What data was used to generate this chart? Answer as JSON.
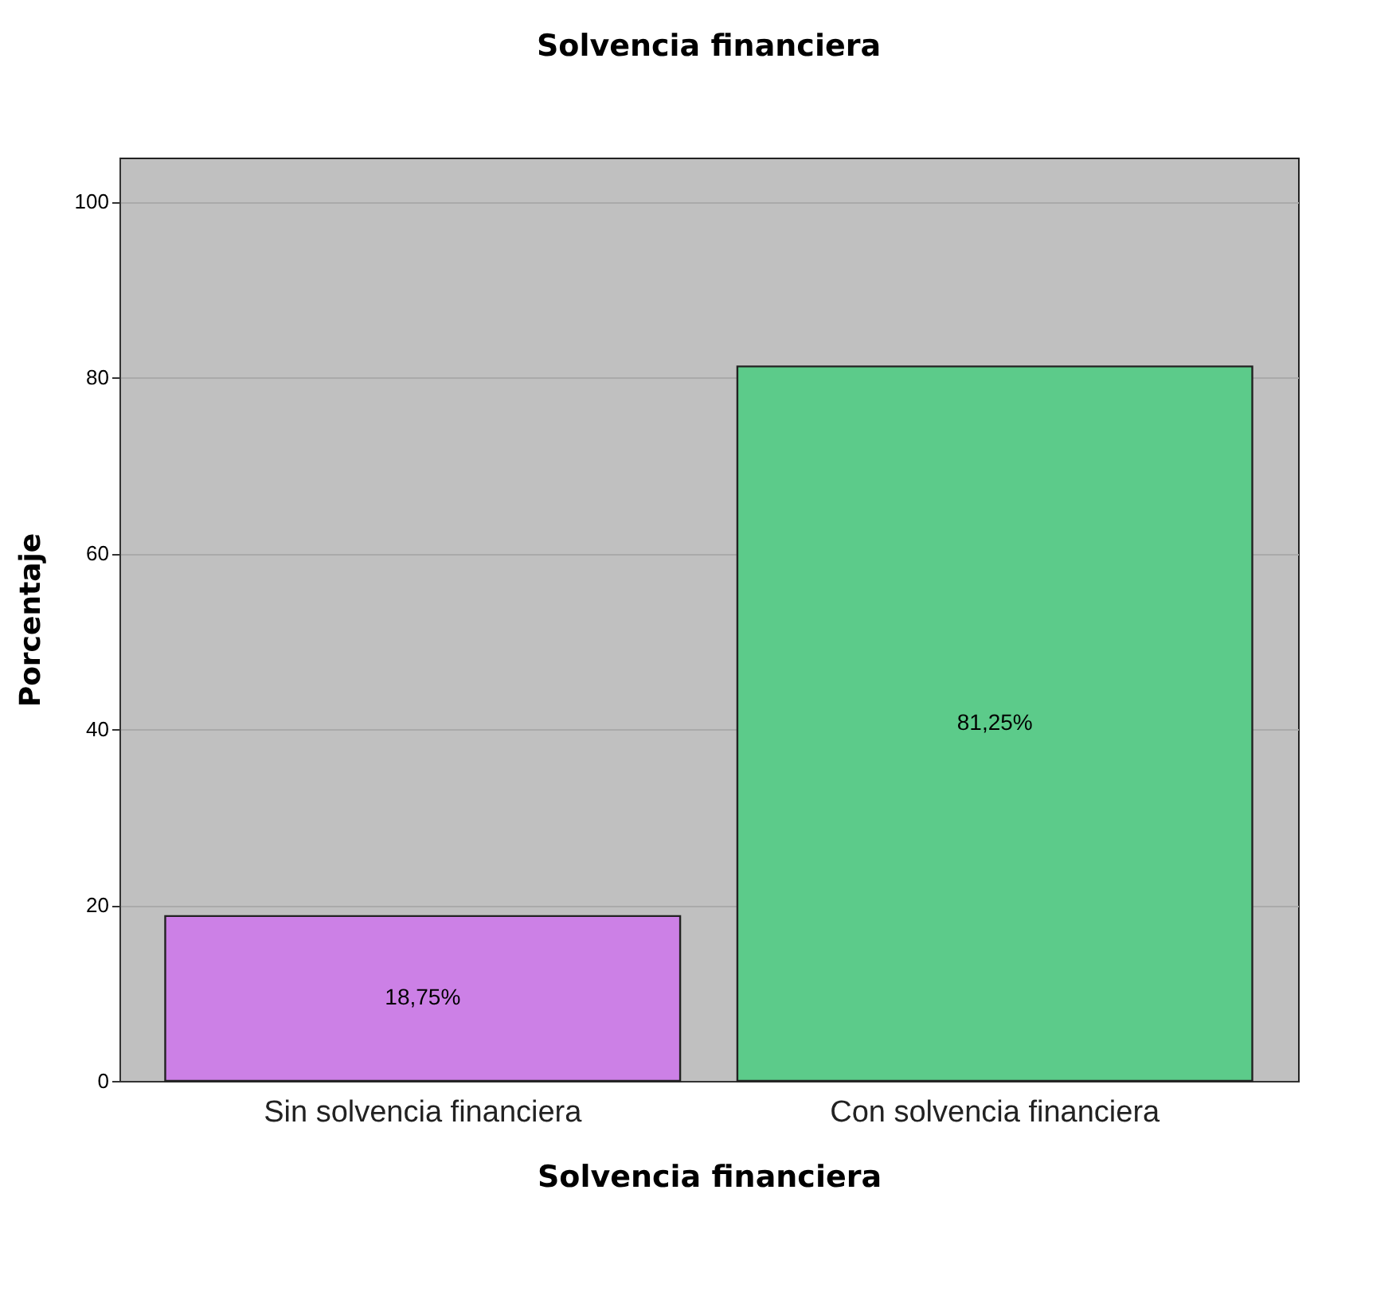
{
  "chart_data": {
    "type": "bar",
    "title": "Solvencia financiera",
    "xlabel": "Solvencia financiera",
    "ylabel": "Porcentaje",
    "categories": [
      "Sin solvencia financiera",
      "Con solvencia financiera"
    ],
    "values": [
      18.75,
      81.25
    ],
    "colors": [
      "#cc80e6",
      "#5ccb8a"
    ],
    "value_labels": [
      "18,75%",
      "81,25%"
    ],
    "ylim": [
      0,
      105
    ],
    "yticks": [
      0,
      20,
      40,
      60,
      80,
      100
    ],
    "grid": "y"
  }
}
